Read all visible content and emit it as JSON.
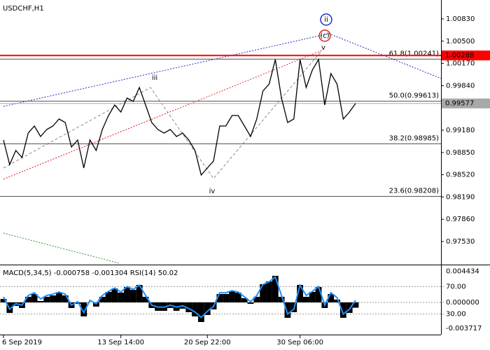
{
  "chart_data": [
    {
      "type": "line",
      "title": "USDCHF,H1",
      "categories": [
        "6 Sep 2019",
        null,
        null,
        null,
        null,
        null,
        null,
        null,
        null,
        null,
        null,
        null,
        null,
        null,
        null,
        null,
        null,
        null,
        null,
        "13 Sep 14:00",
        null,
        null,
        null,
        null,
        null,
        null,
        null,
        null,
        null,
        null,
        null,
        null,
        null,
        "20 Sep 22:00",
        null,
        null,
        null,
        null,
        null,
        null,
        null,
        null,
        null,
        null,
        null,
        null,
        null,
        null,
        "30 Sep 06:00",
        null,
        null,
        null,
        null,
        null,
        null,
        null,
        null,
        null
      ],
      "series": [
        {
          "name": "USDCHF",
          "color": "#000000",
          "values": [
            0.99035,
            0.98671,
            0.98879,
            0.98775,
            0.99138,
            0.99242,
            0.99087,
            0.9919,
            0.99242,
            0.99346,
            0.99294,
            0.98931,
            0.99035,
            0.9862,
            0.99035,
            0.98879,
            0.9919,
            0.99398,
            0.99554,
            0.9945,
            0.99657,
            0.99605,
            0.99813,
            0.99554,
            0.99294,
            0.9919,
            0.99138,
            0.9919,
            0.99087,
            0.99138,
            0.99035,
            0.98879,
            0.98516,
            0.9862,
            0.98723,
            0.99242,
            0.99242,
            0.99398,
            0.99398,
            0.99242,
            0.99087,
            0.99346,
            0.99761,
            0.99865,
            1.00228,
            0.99657,
            0.99294,
            0.99346,
            1.00228,
            0.99813,
            1.00072,
            1.00228,
            0.99554,
            1.0002,
            0.99865,
            0.99346,
            0.9945,
            0.99577
          ]
        }
      ],
      "ylim": [
        0.97188,
        1.01058
      ],
      "yticks": [
        {
          "value": 1.0083,
          "label": "1.00830"
        },
        {
          "value": 1.005,
          "label": "1.00500"
        },
        {
          "value": 1.0017,
          "label": "1.00170"
        },
        {
          "value": 0.9984,
          "label": "0.99840"
        },
        {
          "value": 0.9918,
          "label": "0.99180"
        },
        {
          "value": 0.9885,
          "label": "0.98850"
        },
        {
          "value": 0.9852,
          "label": "0.98520"
        },
        {
          "value": 0.9819,
          "label": "0.98190"
        },
        {
          "value": 0.9786,
          "label": "0.97860"
        },
        {
          "value": 0.9753,
          "label": "0.97530"
        }
      ],
      "price_lines": [
        {
          "value": 1.00288,
          "color": "#ff0000"
        },
        {
          "value": 0.99577,
          "color": "#a8a8a8"
        }
      ],
      "fib_levels": [
        {
          "value": 1.00241,
          "label": "61.8(1.00241)"
        },
        {
          "value": 0.99613,
          "label": "50.0(0.99613)"
        },
        {
          "value": 0.98985,
          "label": "38.2(0.98985)"
        },
        {
          "value": 0.98208,
          "label": "23.6(0.98208)"
        }
      ],
      "annotations": [
        "ii",
        "(c)",
        "v",
        "iii",
        "iv"
      ]
    },
    {
      "type": "indicator",
      "title": "MACD(5,34,5) -0.000758 -0.001304 RSI(14) 50.02",
      "series": [
        {
          "name": "MACD",
          "color": "#000000",
          "values": [
            0.0005,
            -0.0015,
            -0.0005,
            -0.0008,
            0.0008,
            0.0012,
            0.0002,
            0.0008,
            0.001,
            0.0014,
            0.001,
            -0.0008,
            -0.0002,
            -0.002,
            0,
            -0.0006,
            0.0008,
            0.0015,
            0.002,
            0.0014,
            0.0022,
            0.0018,
            0.0025,
            0.0008,
            -0.0008,
            -0.0012,
            -0.0012,
            -0.0008,
            -0.0012,
            -0.0009,
            -0.0014,
            -0.002,
            -0.0028,
            -0.0018,
            -0.001,
            0.0012,
            0.0012,
            0.0016,
            0.0014,
            0.0006,
            -0.0002,
            0.0008,
            0.0026,
            0.003,
            0.0038,
            0.0008,
            -0.0022,
            -0.0014,
            0.0025,
            0.0008,
            0.0015,
            0.0022,
            -0.0008,
            0.0012,
            0.0004,
            -0.0022,
            -0.0015,
            -0.000758
          ]
        },
        {
          "name": "RSI",
          "color": "#1e90ff",
          "axis": "y2",
          "values": [
            55,
            37,
            45,
            43,
            57,
            61,
            52,
            57,
            59,
            62,
            59,
            43,
            48,
            32,
            50,
            45,
            57,
            63,
            68,
            62,
            70,
            66,
            72,
            57,
            43,
            40,
            40,
            43,
            40,
            42,
            38,
            33,
            25,
            34,
            41,
            61,
            61,
            64,
            62,
            55,
            48,
            57,
            73,
            77,
            84,
            57,
            30,
            37,
            72,
            57,
            63,
            70,
            43,
            61,
            54,
            30,
            37,
            50.02
          ]
        }
      ],
      "ylim": [
        -0.0046,
        0.0052
      ],
      "yticks": [
        0.004434,
        {
          "value": 0,
          "label": "0.000000"
        },
        -0.003717
      ],
      "y2lim": [
        0,
        100
      ],
      "y2ticks": [
        {
          "value": 70,
          "label": "70.00"
        },
        {
          "value": 30,
          "label": "30.00"
        }
      ]
    }
  ]
}
